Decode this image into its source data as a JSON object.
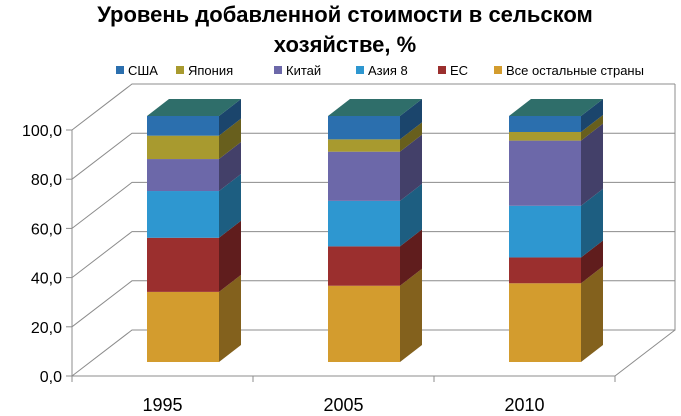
{
  "chart_data": {
    "type": "bar",
    "stacked": true,
    "three_d": true,
    "title_lines": [
      "Уровень добавленной стоимости в сельском",
      "хозяйстве, %"
    ],
    "categories": [
      "1995",
      "2005",
      "2010"
    ],
    "y_ticks": [
      "0,0",
      "20,0",
      "40,0",
      "60,0",
      "80,0",
      "100,0"
    ],
    "ylim": [
      0,
      100
    ],
    "grid": true,
    "legend_position": "top",
    "series": [
      {
        "name": "Все остальные страны",
        "color": "#D39C2E",
        "values": [
          28.5,
          31,
          32
        ]
      },
      {
        "name": "ЕС",
        "color": "#9B2F2E",
        "values": [
          22,
          16,
          10.5
        ]
      },
      {
        "name": "Азия 8",
        "color": "#2E97D0",
        "values": [
          19,
          18.5,
          21
        ]
      },
      {
        "name": "Китай",
        "color": "#6C68A9",
        "values": [
          13,
          20,
          26.5
        ]
      },
      {
        "name": "Япония",
        "color": "#A89A2F",
        "values": [
          9.5,
          5,
          3.5
        ]
      },
      {
        "name": "США",
        "color": "#2B6FAE",
        "values": [
          8,
          9.5,
          6.5
        ]
      }
    ],
    "legend_order": [
      "США",
      "Япония",
      "Китай",
      "Азия 8",
      "ЕС",
      "Все остальные страны"
    ]
  }
}
